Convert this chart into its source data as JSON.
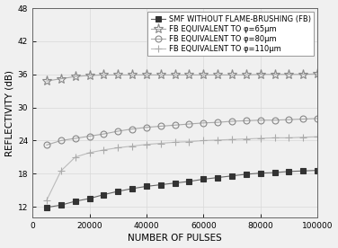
{
  "title": "",
  "xlabel": "NUMBER OF PULSES",
  "ylabel": "REFLECTIVITY (dB)",
  "xlim": [
    0,
    100000
  ],
  "ylim": [
    10,
    48
  ],
  "yticks": [
    12,
    18,
    24,
    30,
    36,
    42,
    48
  ],
  "xticks": [
    0,
    20000,
    40000,
    60000,
    80000,
    100000
  ],
  "xtick_labels": [
    "0",
    "20000",
    "40000",
    "60000",
    "80000",
    "100000"
  ],
  "background_color": "#f0f0f0",
  "grid_color": "#d8d8d8",
  "series": [
    {
      "label": "SMF WITHOUT FLAME-BRUSHING (FB)",
      "color": "#555555",
      "marker": "s",
      "marker_fill": "#333333",
      "linestyle": "-",
      "x": [
        5000,
        10000,
        15000,
        20000,
        25000,
        30000,
        35000,
        40000,
        45000,
        50000,
        55000,
        60000,
        65000,
        70000,
        75000,
        80000,
        85000,
        90000,
        95000,
        100000
      ],
      "y": [
        11.9,
        12.3,
        13.0,
        13.5,
        14.2,
        14.8,
        15.3,
        15.7,
        16.0,
        16.3,
        16.6,
        17.0,
        17.3,
        17.6,
        17.9,
        18.1,
        18.2,
        18.4,
        18.5,
        18.6
      ]
    },
    {
      "label": "FB EQUIVALENT TO φ=65μm",
      "color": "#999999",
      "marker": "o",
      "marker_fill": "none",
      "marker_style": "star",
      "linestyle": "-",
      "x": [
        5000,
        10000,
        15000,
        20000,
        25000,
        30000,
        35000,
        40000,
        45000,
        50000,
        55000,
        60000,
        65000,
        70000,
        75000,
        80000,
        85000,
        90000,
        95000,
        100000
      ],
      "y": [
        34.8,
        35.2,
        35.6,
        35.8,
        35.9,
        35.9,
        35.9,
        35.9,
        35.9,
        35.9,
        35.9,
        35.9,
        35.9,
        35.9,
        35.9,
        36.0,
        36.0,
        36.0,
        36.0,
        36.1
      ]
    },
    {
      "label": "FB EQUIVALENT TO φ=80μm",
      "color": "#999999",
      "marker": "o",
      "marker_fill": "none",
      "marker_style": "circle",
      "linestyle": "-",
      "x": [
        5000,
        10000,
        15000,
        20000,
        25000,
        30000,
        35000,
        40000,
        45000,
        50000,
        55000,
        60000,
        65000,
        70000,
        75000,
        80000,
        85000,
        90000,
        95000,
        100000
      ],
      "y": [
        23.2,
        24.0,
        24.4,
        24.8,
        25.2,
        25.7,
        26.1,
        26.4,
        26.6,
        26.8,
        27.0,
        27.2,
        27.3,
        27.5,
        27.6,
        27.7,
        27.7,
        27.8,
        27.9,
        28.0
      ]
    },
    {
      "label": "FB EQUIVALENT TO φ=110μm",
      "color": "#aaaaaa",
      "marker": "+",
      "marker_fill": "none",
      "marker_style": "plus",
      "linestyle": "-",
      "x": [
        5000,
        10000,
        15000,
        20000,
        25000,
        30000,
        35000,
        40000,
        45000,
        50000,
        55000,
        60000,
        65000,
        70000,
        75000,
        80000,
        85000,
        90000,
        95000,
        100000
      ],
      "y": [
        13.2,
        18.5,
        21.0,
        21.8,
        22.3,
        22.7,
        23.0,
        23.3,
        23.5,
        23.7,
        23.8,
        24.0,
        24.1,
        24.2,
        24.3,
        24.4,
        24.5,
        24.5,
        24.6,
        24.7
      ]
    }
  ],
  "legend_fontsize": 6.0,
  "axis_fontsize": 7.5,
  "tick_fontsize": 6.5,
  "marker_sizes": {
    "s": 4,
    "star": 7,
    "circle": 5,
    "plus": 6
  }
}
